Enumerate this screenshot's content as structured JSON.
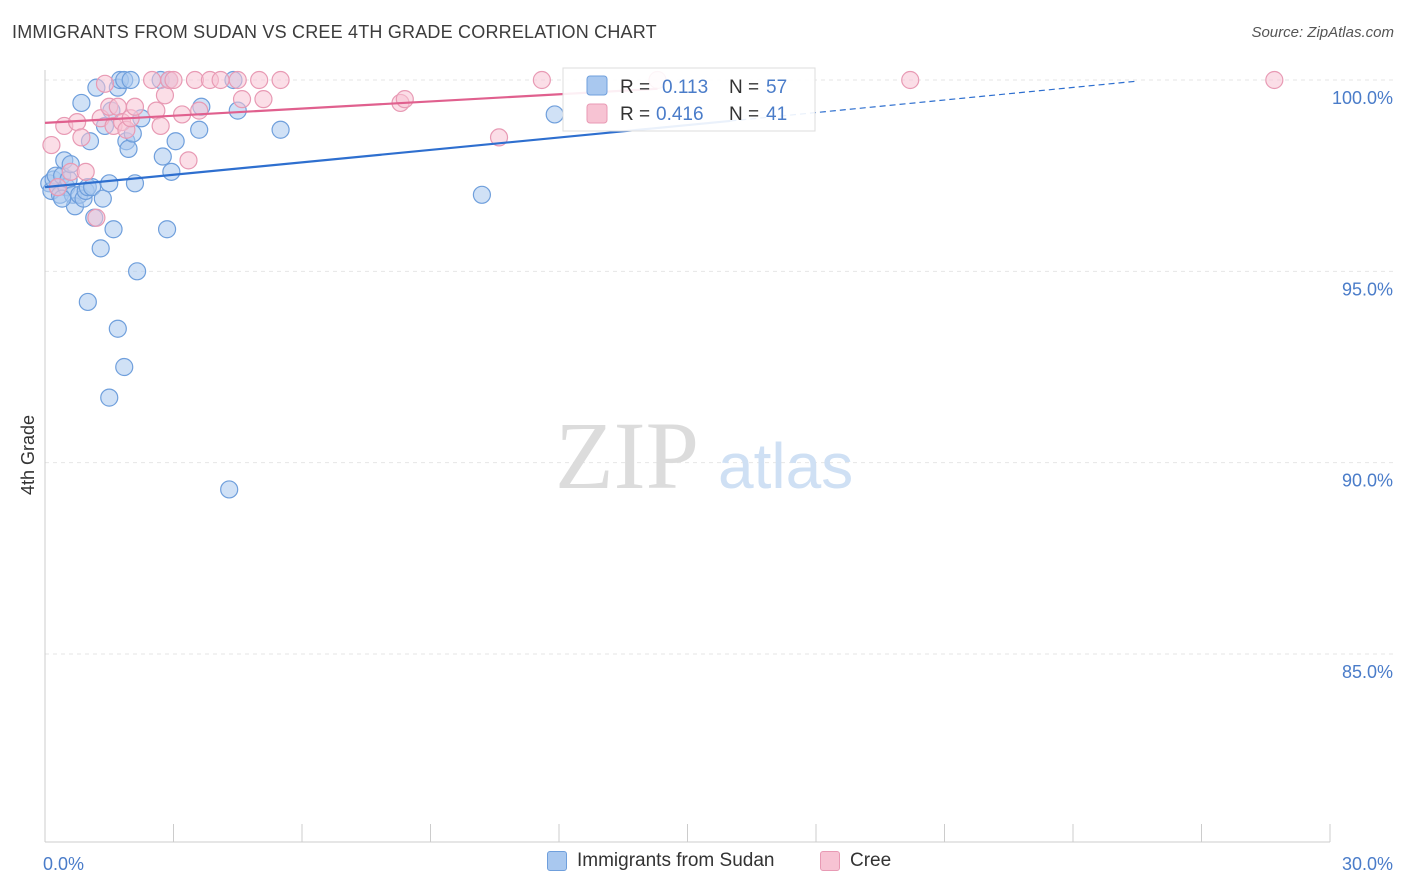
{
  "title": "IMMIGRANTS FROM SUDAN VS CREE 4TH GRADE CORRELATION CHART",
  "source": "Source: ZipAtlas.com",
  "watermark": {
    "zip": "ZIP",
    "atlas": "atlas"
  },
  "colors": {
    "blue_fill": "#a9c8ef",
    "blue_stroke": "#6f9fdc",
    "blue_line": "#2e6fcf",
    "pink_fill": "#f7c3d3",
    "pink_stroke": "#e89ab4",
    "pink_line": "#e0608e",
    "tick_text": "#4a7cc9",
    "grid": "#e6e6e6"
  },
  "legend_box": {
    "rows": [
      {
        "r_label": "R =",
        "r_value": "0.113",
        "n_label": "N =",
        "n_value": "57"
      },
      {
        "r_label": "R =",
        "r_value": "0.416",
        "n_label": "N =",
        "n_value": "41"
      }
    ]
  },
  "bottom_legend": [
    "Immigrants from Sudan",
    "Cree"
  ],
  "chart_data": {
    "type": "scatter",
    "title": "IMMIGRANTS FROM SUDAN VS CREE 4TH GRADE CORRELATION CHART",
    "xlabel": "",
    "ylabel": "4th Grade",
    "xlim": [
      0,
      30
    ],
    "ylim": [
      80.5,
      100.5
    ],
    "x_tick_labels": [
      "0.0%",
      "30.0%"
    ],
    "y_ticks": [
      85,
      90,
      95,
      100
    ],
    "y_tick_labels": [
      "85.0%",
      "90.0%",
      "95.0%",
      "100.0%"
    ],
    "grid": true,
    "legend_position": "top-center",
    "series": [
      {
        "name": "Immigrants from Sudan",
        "R": 0.113,
        "N": 57,
        "trend": {
          "x0": 0,
          "y0": 97.2,
          "x1": 16.0,
          "y1": 98.93,
          "dash_to_x": 25.5,
          "dash_to_y": 99.97
        },
        "points": [
          [
            0.1,
            97.3
          ],
          [
            0.15,
            97.1
          ],
          [
            0.2,
            97.4
          ],
          [
            0.25,
            97.5
          ],
          [
            0.3,
            97.2
          ],
          [
            0.35,
            97.0
          ],
          [
            0.4,
            97.5
          ],
          [
            0.45,
            97.9
          ],
          [
            0.5,
            97.2
          ],
          [
            0.55,
            97.4
          ],
          [
            0.6,
            97.8
          ],
          [
            0.65,
            97.0
          ],
          [
            0.7,
            96.7
          ],
          [
            0.8,
            97.0
          ],
          [
            0.85,
            99.4
          ],
          [
            0.9,
            96.9
          ],
          [
            0.95,
            97.1
          ],
          [
            1.0,
            97.2
          ],
          [
            1.05,
            98.4
          ],
          [
            1.1,
            97.2
          ],
          [
            1.15,
            96.4
          ],
          [
            1.2,
            99.8
          ],
          [
            1.3,
            95.6
          ],
          [
            1.35,
            96.9
          ],
          [
            1.4,
            98.8
          ],
          [
            1.5,
            97.3
          ],
          [
            1.55,
            99.2
          ],
          [
            1.6,
            96.1
          ],
          [
            1.7,
            99.8
          ],
          [
            1.75,
            100.0
          ],
          [
            1.85,
            100.0
          ],
          [
            1.9,
            98.4
          ],
          [
            1.95,
            98.2
          ],
          [
            2.0,
            100.0
          ],
          [
            2.05,
            98.6
          ],
          [
            2.1,
            97.3
          ],
          [
            2.15,
            95.0
          ],
          [
            2.25,
            99.0
          ],
          [
            2.7,
            100.0
          ],
          [
            2.75,
            98.0
          ],
          [
            2.85,
            96.1
          ],
          [
            2.9,
            100.0
          ],
          [
            2.95,
            97.6
          ],
          [
            3.05,
            98.4
          ],
          [
            3.6,
            98.7
          ],
          [
            3.65,
            99.3
          ],
          [
            4.4,
            100.0
          ],
          [
            4.5,
            99.2
          ],
          [
            5.5,
            98.7
          ],
          [
            1.0,
            94.2
          ],
          [
            1.7,
            93.5
          ],
          [
            1.85,
            92.5
          ],
          [
            1.5,
            91.7
          ],
          [
            4.3,
            89.3
          ],
          [
            10.2,
            97.0
          ],
          [
            11.9,
            99.1
          ],
          [
            0.4,
            96.9
          ]
        ]
      },
      {
        "name": "Cree",
        "R": 0.416,
        "N": 41,
        "trend": {
          "x0": 0,
          "y0": 98.88,
          "x1": 14.3,
          "y1": 99.77
        },
        "points": [
          [
            0.15,
            98.3
          ],
          [
            0.3,
            97.2
          ],
          [
            0.45,
            98.8
          ],
          [
            0.6,
            97.6
          ],
          [
            0.75,
            98.9
          ],
          [
            0.85,
            98.5
          ],
          [
            0.95,
            97.6
          ],
          [
            1.2,
            96.4
          ],
          [
            1.3,
            99.0
          ],
          [
            1.4,
            99.9
          ],
          [
            1.5,
            99.3
          ],
          [
            1.6,
            98.8
          ],
          [
            1.7,
            99.3
          ],
          [
            1.8,
            98.9
          ],
          [
            1.9,
            98.7
          ],
          [
            2.0,
            99.0
          ],
          [
            2.1,
            99.3
          ],
          [
            2.5,
            100.0
          ],
          [
            2.6,
            99.2
          ],
          [
            2.7,
            98.8
          ],
          [
            2.8,
            99.6
          ],
          [
            2.9,
            100.0
          ],
          [
            3.0,
            100.0
          ],
          [
            3.2,
            99.1
          ],
          [
            3.35,
            97.9
          ],
          [
            3.5,
            100.0
          ],
          [
            3.6,
            99.2
          ],
          [
            3.85,
            100.0
          ],
          [
            4.1,
            100.0
          ],
          [
            4.5,
            100.0
          ],
          [
            4.6,
            99.5
          ],
          [
            5.0,
            100.0
          ],
          [
            5.1,
            99.5
          ],
          [
            5.5,
            100.0
          ],
          [
            8.3,
            99.4
          ],
          [
            8.4,
            99.5
          ],
          [
            10.6,
            98.5
          ],
          [
            11.6,
            100.0
          ],
          [
            14.3,
            100.0
          ],
          [
            20.2,
            100.0
          ],
          [
            28.7,
            100.0
          ]
        ]
      }
    ]
  }
}
